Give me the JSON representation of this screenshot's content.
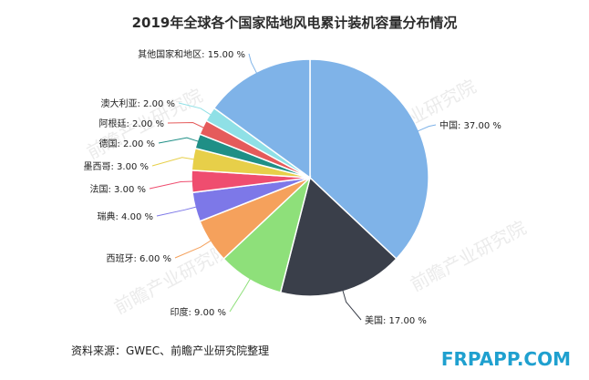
{
  "chart_data": {
    "type": "pie",
    "title": "2019年全球各个国家陆地风电累计装机容量分布情况",
    "slices": [
      {
        "label": "中国",
        "value": 37.0,
        "value_text": "37.00 %",
        "color": "#7fb3e8"
      },
      {
        "label": "美国",
        "value": 17.0,
        "value_text": "17.00 %",
        "color": "#3a3f4a"
      },
      {
        "label": "印度",
        "value": 9.0,
        "value_text": "9.00 %",
        "color": "#8ee07a"
      },
      {
        "label": "西班牙",
        "value": 6.0,
        "value_text": "6.00 %",
        "color": "#f5a15c"
      },
      {
        "label": "瑞典",
        "value": 4.0,
        "value_text": "4.00 %",
        "color": "#7d78e8"
      },
      {
        "label": "法国",
        "value": 3.0,
        "value_text": "3.00 %",
        "color": "#ef4d6f"
      },
      {
        "label": "墨西哥",
        "value": 3.0,
        "value_text": "3.00 %",
        "color": "#e7cf49"
      },
      {
        "label": "德国",
        "value": 2.0,
        "value_text": "2.00 %",
        "color": "#1f8f86"
      },
      {
        "label": "阿根廷",
        "value": 2.0,
        "value_text": "2.00 %",
        "color": "#e55b5b"
      },
      {
        "label": "澳大利亚",
        "value": 2.0,
        "value_text": "2.00 %",
        "color": "#8fe0e6"
      },
      {
        "label": "其他国家和地区",
        "value": 15.0,
        "value_text": "15.00 %",
        "color": "#7fb3e8"
      }
    ]
  },
  "source_note": "资料来源：GWEC、前瞻产业研究院整理",
  "site_watermark": "FRPAPP.COM",
  "background_watermark": "前瞻产业研究院"
}
